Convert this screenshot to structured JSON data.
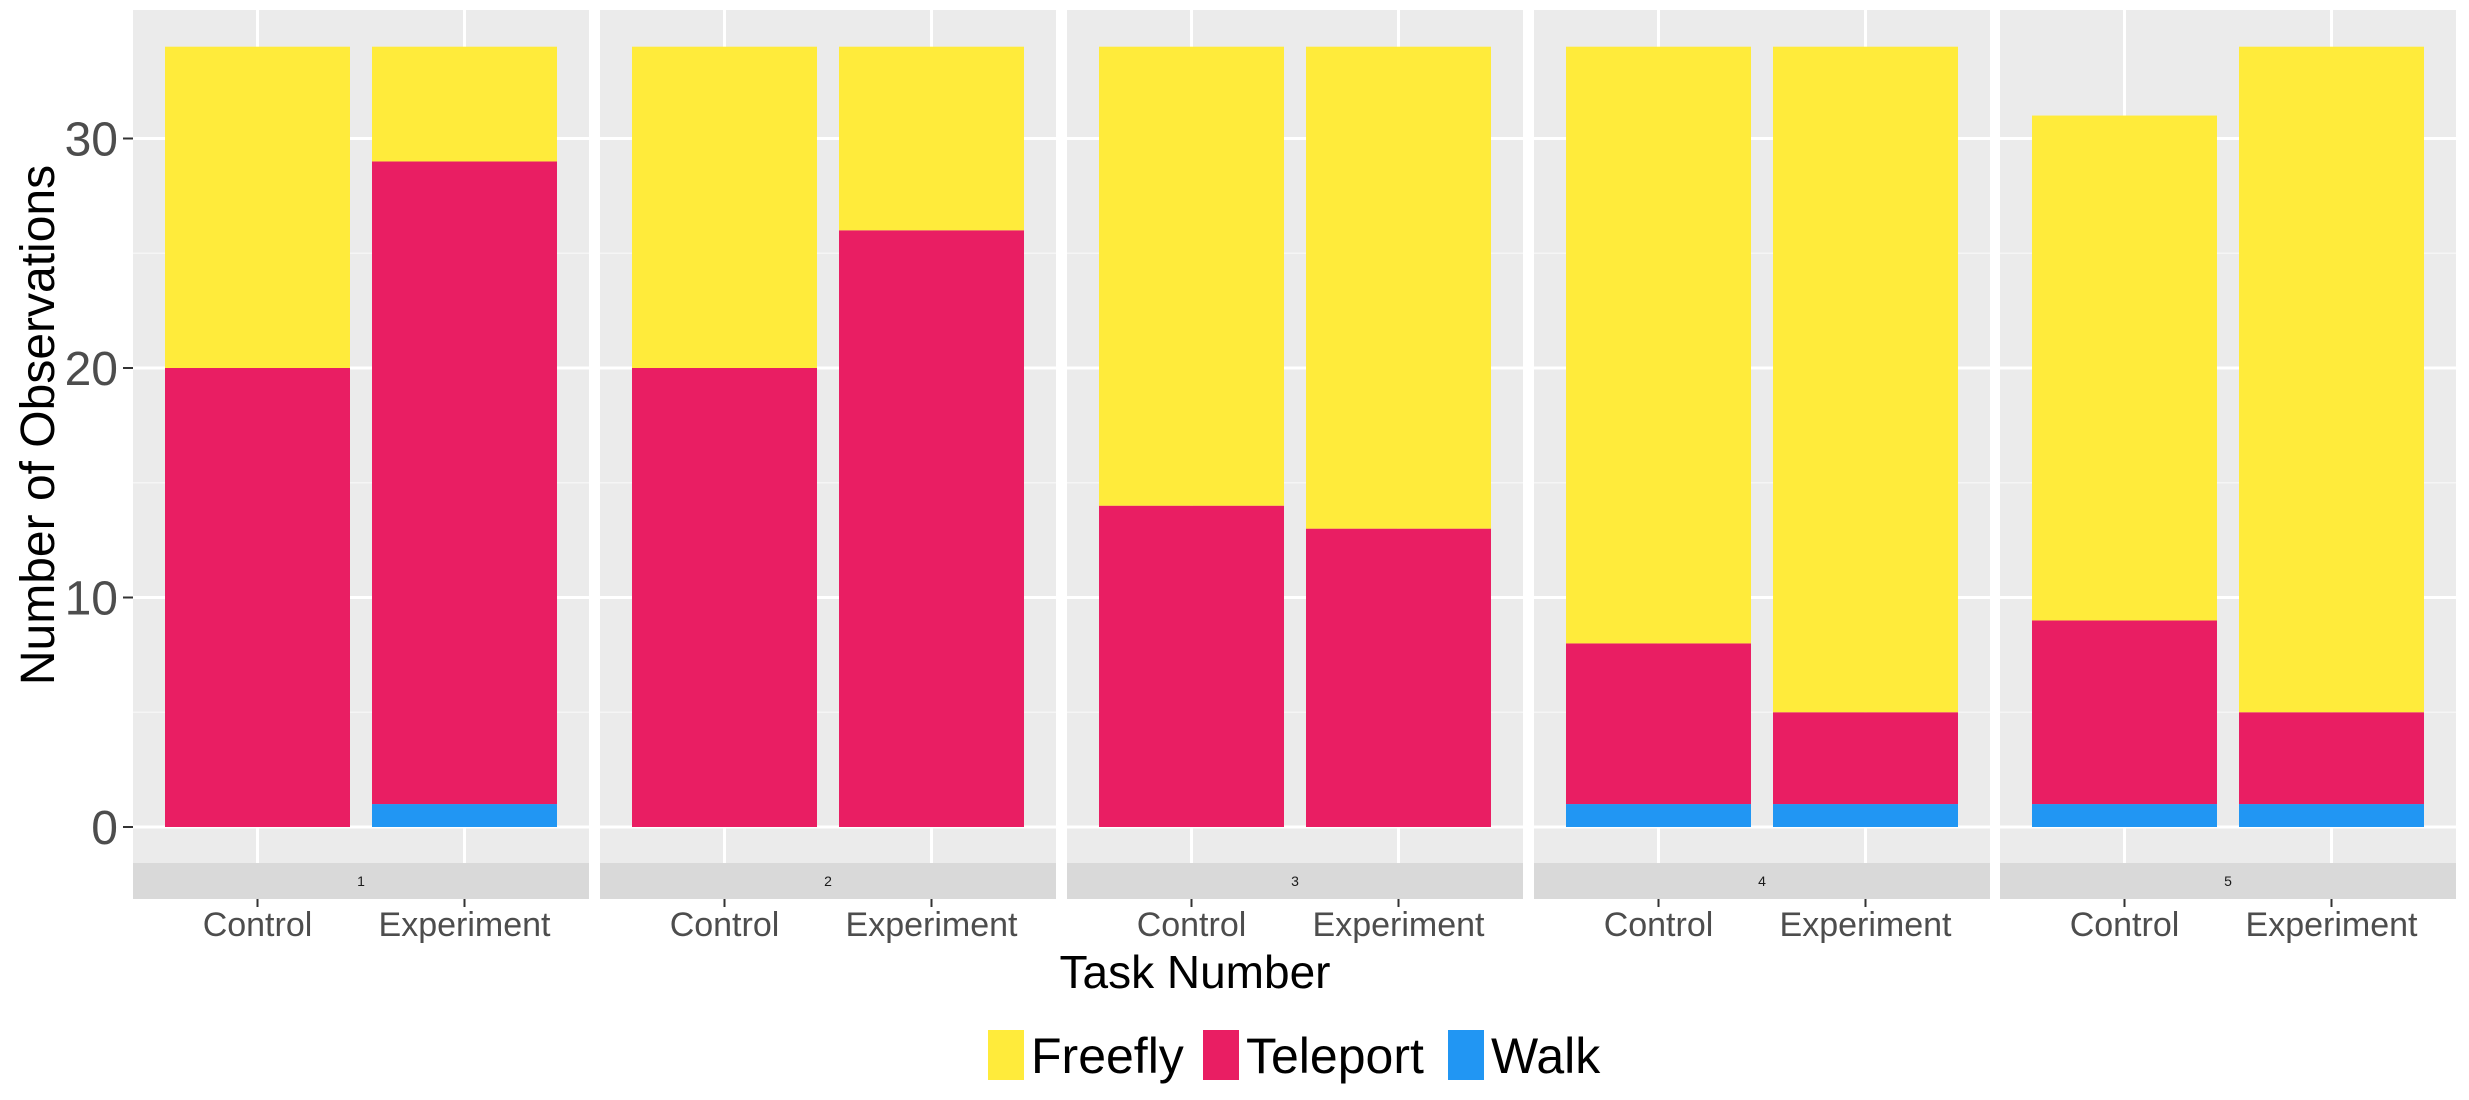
{
  "chart_data": {
    "type": "bar",
    "stacked": true,
    "faceted": true,
    "xlabel": "Task Number",
    "ylabel": "Number of Observations",
    "ylim": [
      0,
      34
    ],
    "yticks": [
      0,
      10,
      20,
      30
    ],
    "grid": true,
    "legend_position": "bottom",
    "categories": [
      "Control",
      "Experiment"
    ],
    "series": [
      {
        "name": "Walk",
        "color": "#2196F3"
      },
      {
        "name": "Teleport",
        "color": "#E91E63"
      },
      {
        "name": "Freefly",
        "color": "#FFEB3B"
      }
    ],
    "facets": [
      {
        "label": "1",
        "values": {
          "Walk": [
            0,
            1
          ],
          "Teleport": [
            20,
            28
          ],
          "Freefly": [
            14,
            5
          ]
        }
      },
      {
        "label": "2",
        "values": {
          "Walk": [
            0,
            0
          ],
          "Teleport": [
            20,
            26
          ],
          "Freefly": [
            14,
            8
          ]
        }
      },
      {
        "label": "3",
        "values": {
          "Walk": [
            0,
            0
          ],
          "Teleport": [
            14,
            13
          ],
          "Freefly": [
            20,
            21
          ]
        }
      },
      {
        "label": "4",
        "values": {
          "Walk": [
            1,
            1
          ],
          "Teleport": [
            7,
            4
          ],
          "Freefly": [
            26,
            29
          ]
        }
      },
      {
        "label": "5",
        "values": {
          "Walk": [
            1,
            1
          ],
          "Teleport": [
            8,
            4
          ],
          "Freefly": [
            22,
            29
          ]
        }
      }
    ],
    "legend_order": [
      "Freefly",
      "Teleport",
      "Walk"
    ]
  }
}
